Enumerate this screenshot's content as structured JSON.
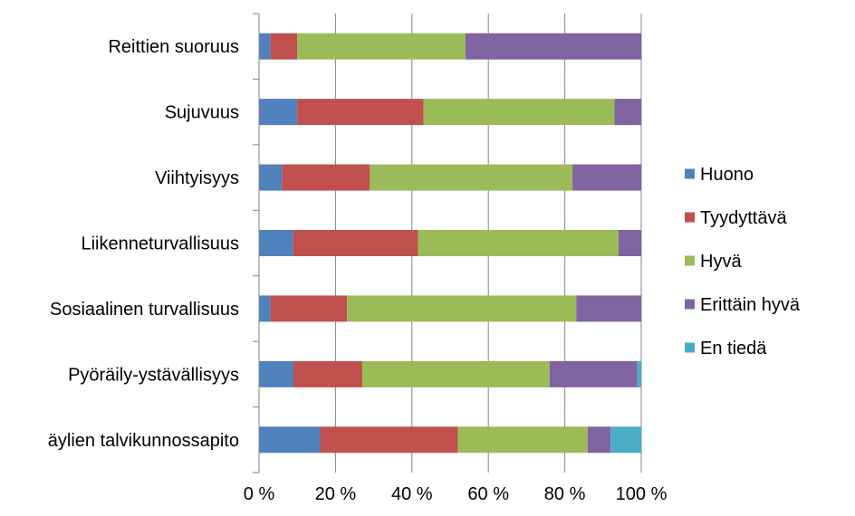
{
  "chart_data": {
    "type": "bar",
    "orientation": "horizontal",
    "stacked": "percent",
    "categories": [
      "Reittien suoruus",
      "Sujuvuus",
      "Viihtyisyys",
      "Liikenneturvallisuus",
      "Sosiaalinen turvallisuus",
      "Pyöräily-ystävällisyys",
      "äylien talvikunnossapito"
    ],
    "series": [
      {
        "name": "Huono",
        "color": "#4F81BD",
        "values": [
          3,
          10,
          6,
          9,
          3,
          9,
          16
        ]
      },
      {
        "name": "Tyydyttävä",
        "color": "#C0504D",
        "values": [
          7,
          33,
          23,
          33,
          20,
          18,
          36
        ]
      },
      {
        "name": "Hyvä",
        "color": "#9BBB59",
        "values": [
          44,
          50,
          53,
          53,
          60,
          49,
          34
        ]
      },
      {
        "name": "Erittäin hyvä",
        "color": "#8064A2",
        "values": [
          46,
          7,
          18,
          6,
          17,
          23,
          6
        ]
      },
      {
        "name": "En tiedä",
        "color": "#4BACC6",
        "values": [
          0,
          0,
          0,
          0,
          0,
          1,
          8
        ]
      }
    ],
    "xticks": [
      "0 %",
      "20 %",
      "40 %",
      "60 %",
      "80 %",
      "100 %"
    ],
    "xlim": [
      0,
      100
    ],
    "grid": true,
    "legend": "right"
  }
}
